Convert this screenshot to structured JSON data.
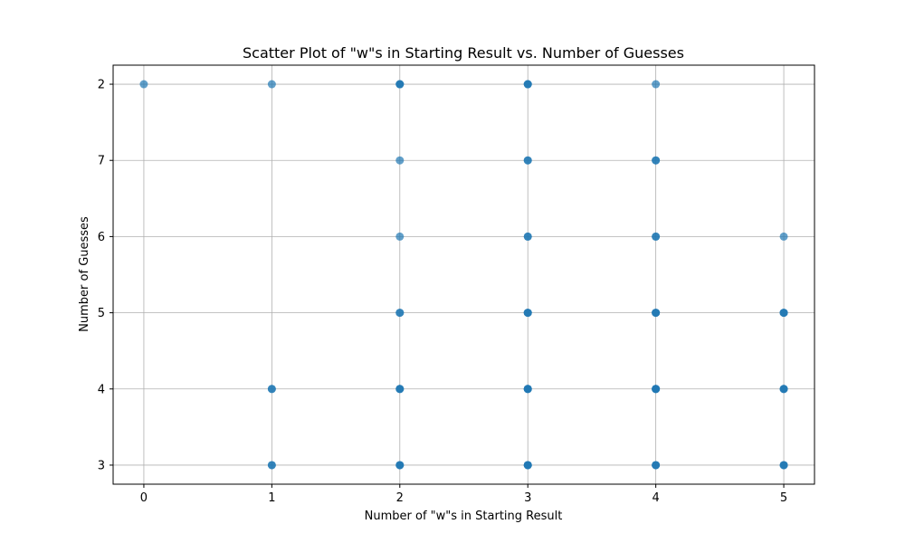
{
  "chart_data": {
    "type": "scatter",
    "title": "Scatter Plot of \"w\"s in Starting Result vs. Number of Guesses",
    "xlabel": "Number of \"w\"s in Starting Result",
    "ylabel": "Number of Guesses",
    "x_ticks": [
      "0",
      "1",
      "2",
      "3",
      "4",
      "5"
    ],
    "y_ticks": [
      "3",
      "4",
      "5",
      "6",
      "7",
      "2"
    ],
    "xlim": [
      -0.24,
      5.24
    ],
    "ylim": [
      2.75,
      8.25
    ],
    "grid": true,
    "point_color": "#1f77b4",
    "point_alpha": 0.7,
    "points": [
      {
        "x": 0,
        "y": "2"
      },
      {
        "x": 1,
        "y": "2"
      },
      {
        "x": 1,
        "y": "4"
      },
      {
        "x": 1,
        "y": "4"
      },
      {
        "x": 1,
        "y": "3"
      },
      {
        "x": 1,
        "y": "3"
      },
      {
        "x": 2,
        "y": "2"
      },
      {
        "x": 2,
        "y": "2"
      },
      {
        "x": 2,
        "y": "2"
      },
      {
        "x": 2,
        "y": "7"
      },
      {
        "x": 2,
        "y": "6"
      },
      {
        "x": 2,
        "y": "5"
      },
      {
        "x": 2,
        "y": "5"
      },
      {
        "x": 2,
        "y": "4"
      },
      {
        "x": 2,
        "y": "4"
      },
      {
        "x": 2,
        "y": "4"
      },
      {
        "x": 2,
        "y": "3"
      },
      {
        "x": 2,
        "y": "3"
      },
      {
        "x": 2,
        "y": "3"
      },
      {
        "x": 3,
        "y": "2"
      },
      {
        "x": 3,
        "y": "2"
      },
      {
        "x": 3,
        "y": "2"
      },
      {
        "x": 3,
        "y": "7"
      },
      {
        "x": 3,
        "y": "7"
      },
      {
        "x": 3,
        "y": "6"
      },
      {
        "x": 3,
        "y": "6"
      },
      {
        "x": 3,
        "y": "5"
      },
      {
        "x": 3,
        "y": "5"
      },
      {
        "x": 3,
        "y": "5"
      },
      {
        "x": 3,
        "y": "4"
      },
      {
        "x": 3,
        "y": "4"
      },
      {
        "x": 3,
        "y": "4"
      },
      {
        "x": 3,
        "y": "4"
      },
      {
        "x": 3,
        "y": "3"
      },
      {
        "x": 3,
        "y": "3"
      },
      {
        "x": 3,
        "y": "3"
      },
      {
        "x": 3,
        "y": "3"
      },
      {
        "x": 4,
        "y": "2"
      },
      {
        "x": 4,
        "y": "7"
      },
      {
        "x": 4,
        "y": "7"
      },
      {
        "x": 4,
        "y": "6"
      },
      {
        "x": 4,
        "y": "6"
      },
      {
        "x": 4,
        "y": "5"
      },
      {
        "x": 4,
        "y": "5"
      },
      {
        "x": 4,
        "y": "5"
      },
      {
        "x": 4,
        "y": "4"
      },
      {
        "x": 4,
        "y": "4"
      },
      {
        "x": 4,
        "y": "4"
      },
      {
        "x": 4,
        "y": "4"
      },
      {
        "x": 4,
        "y": "3"
      },
      {
        "x": 4,
        "y": "3"
      },
      {
        "x": 4,
        "y": "3"
      },
      {
        "x": 5,
        "y": "6"
      },
      {
        "x": 5,
        "y": "5"
      },
      {
        "x": 5,
        "y": "5"
      },
      {
        "x": 5,
        "y": "5"
      },
      {
        "x": 5,
        "y": "4"
      },
      {
        "x": 5,
        "y": "4"
      },
      {
        "x": 5,
        "y": "4"
      },
      {
        "x": 5,
        "y": "3"
      },
      {
        "x": 5,
        "y": "3"
      },
      {
        "x": 5,
        "y": "3"
      }
    ]
  }
}
